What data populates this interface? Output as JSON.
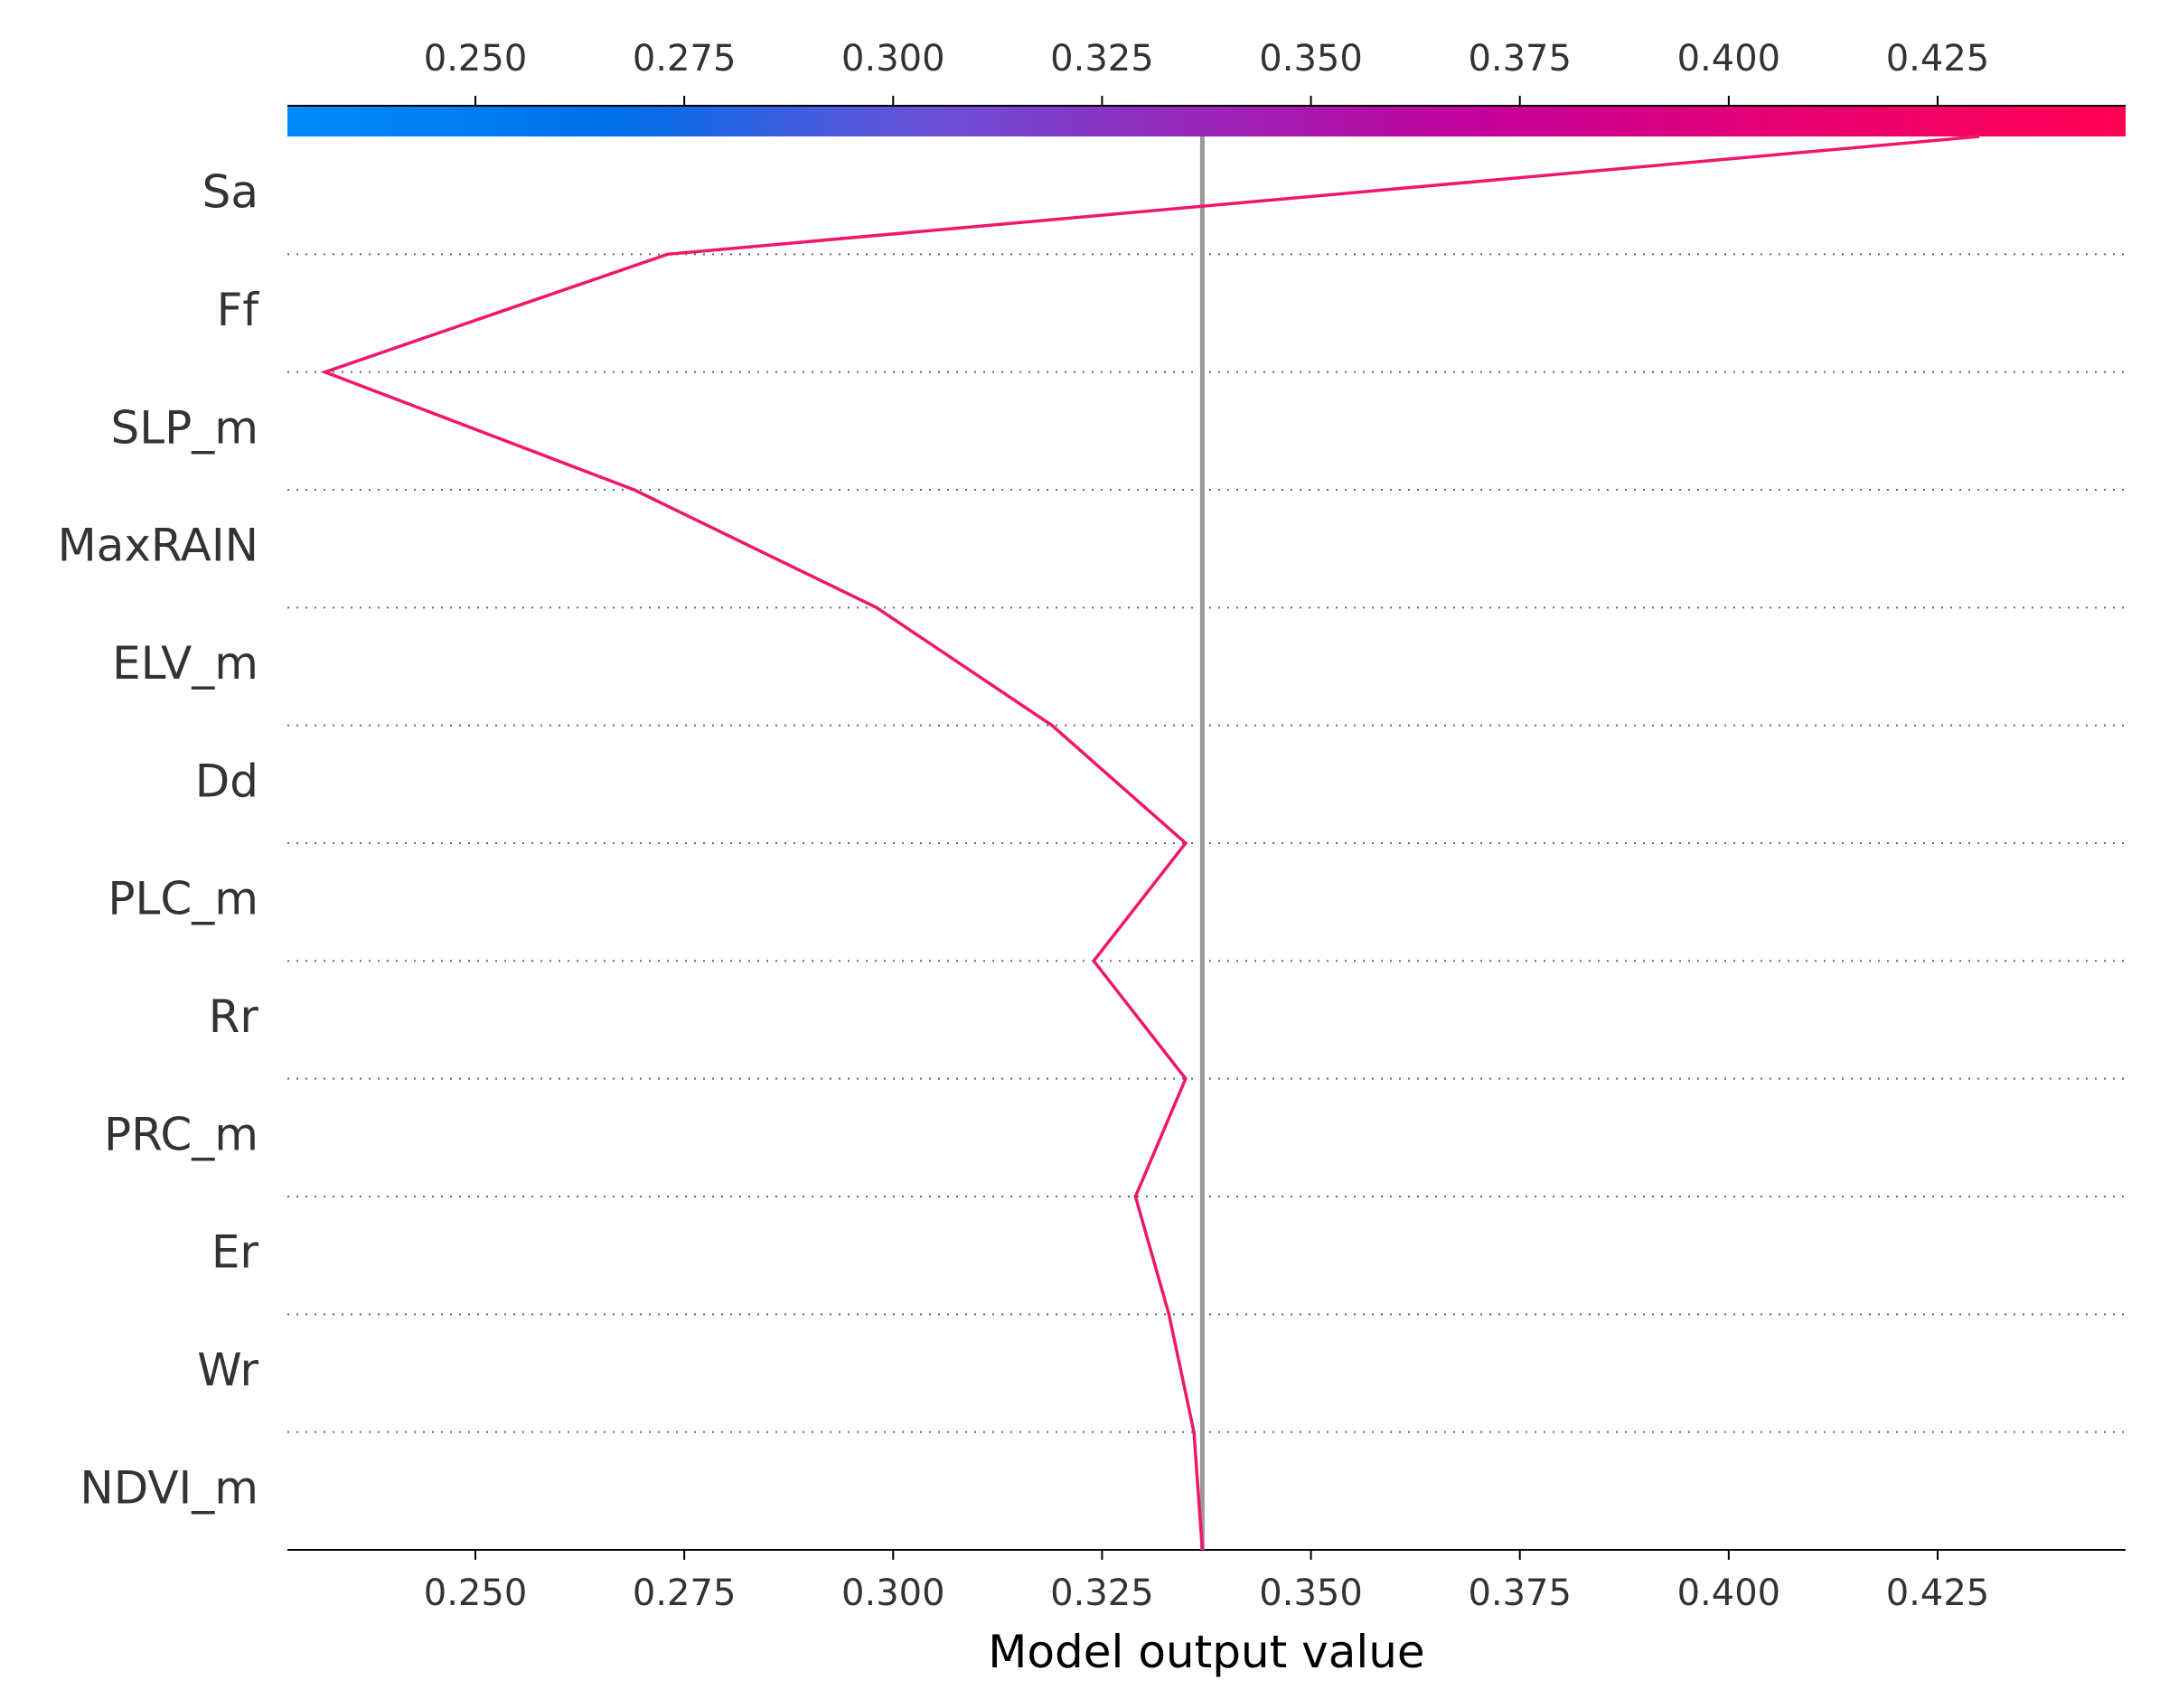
{
  "chart_data": {
    "type": "line",
    "title": "",
    "xlabel": "Model output value",
    "ylabel": "",
    "xlim": [
      0.2275,
      0.4475
    ],
    "x_ticks": [
      "0.250",
      "0.275",
      "0.300",
      "0.325",
      "0.350",
      "0.375",
      "0.400",
      "0.425"
    ],
    "x_tick_values": [
      0.25,
      0.275,
      0.3,
      0.325,
      0.35,
      0.375,
      0.4,
      0.425
    ],
    "base_value": 0.337,
    "features": [
      "Sa",
      "Ff",
      "SLP_m",
      "MaxRAIN",
      "ELV_m",
      "Dd",
      "PLC_m",
      "Rr",
      "PRC_m",
      "Er",
      "Wr",
      "NDVI_m"
    ],
    "series": [
      {
        "values": [
          0.337,
          0.336,
          0.333,
          0.329,
          0.335,
          0.324,
          0.335,
          0.319,
          0.298,
          0.269,
          0.232,
          0.273,
          0.43
        ]
      }
    ],
    "grid": "horizontal dotted",
    "colors": {
      "line": "#f0176a",
      "base_line": "#999999",
      "colorbar_low": "#008bfb",
      "colorbar_high": "#ff0052"
    }
  }
}
